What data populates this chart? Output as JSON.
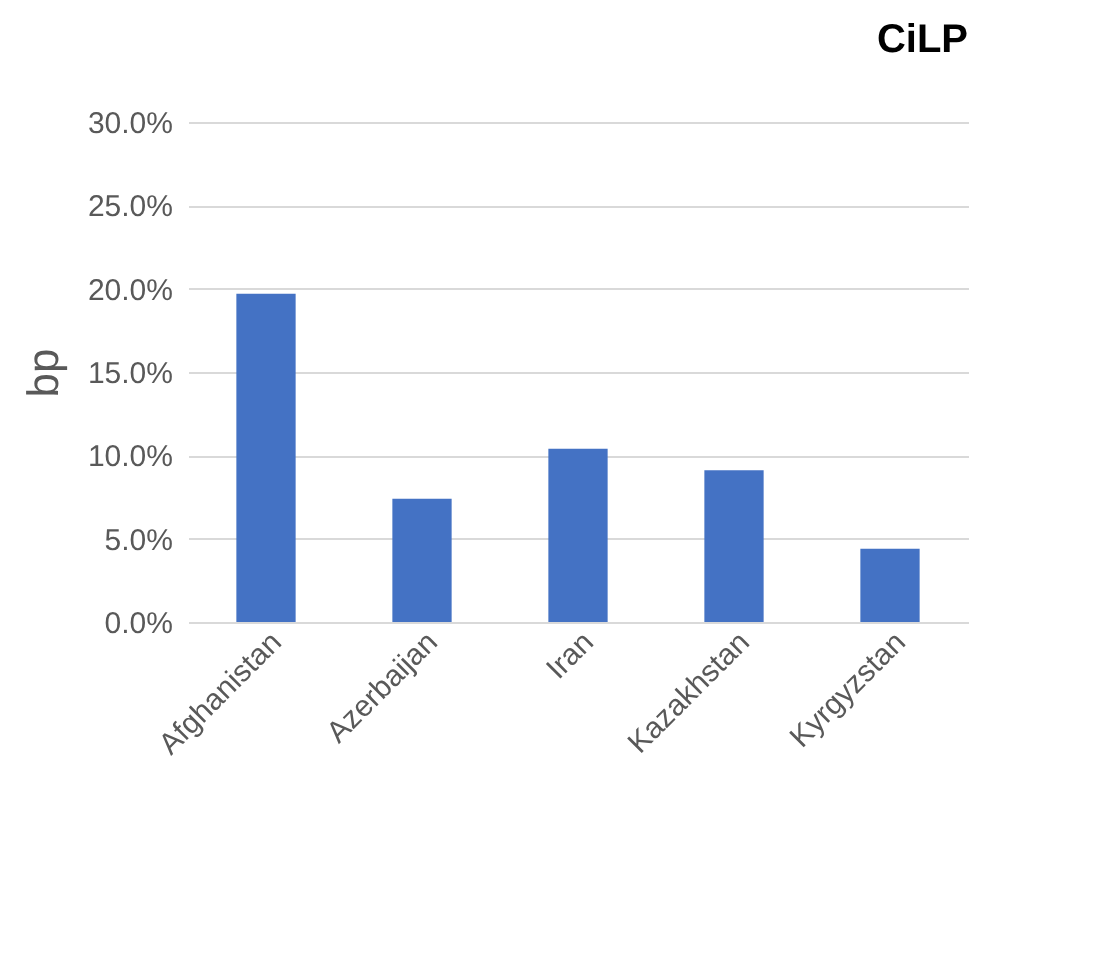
{
  "chart_data": {
    "type": "bar",
    "title": "CiLP",
    "ylabel": "bp",
    "categories": [
      "Afghanistan",
      "Azerbaijan",
      "Iran",
      "Kazakhstan",
      "Kyrgyzstan"
    ],
    "values": [
      19.7,
      7.4,
      10.4,
      9.1,
      4.4
    ],
    "color": "#4472c4",
    "ylim": [
      0,
      30
    ],
    "yticks": [
      {
        "value": 0,
        "label": "0.0%"
      },
      {
        "value": 5,
        "label": "5.0%"
      },
      {
        "value": 10,
        "label": "10.0%"
      },
      {
        "value": 15,
        "label": "15.0%"
      },
      {
        "value": 20,
        "label": "20.0%"
      },
      {
        "value": 25,
        "label": "25.0%"
      },
      {
        "value": 30,
        "label": "30.0%"
      }
    ],
    "grid": "y"
  }
}
